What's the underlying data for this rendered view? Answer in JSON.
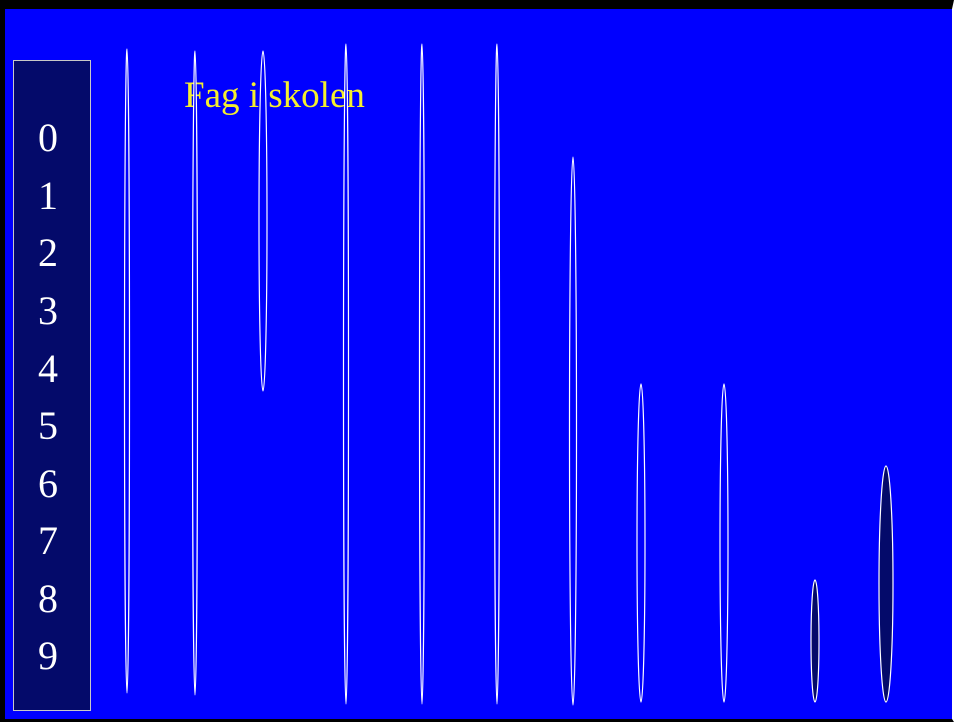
{
  "title": "Fag i skolen",
  "digits": [
    "0",
    "1",
    "2",
    "3",
    "4",
    "5",
    "6",
    "7",
    "8",
    "9"
  ],
  "colors": {
    "background": "#0000ff",
    "panel": "#040a6a",
    "title": "#f5ef2e",
    "text": "#ffffff",
    "outline": "#ffffff"
  }
}
